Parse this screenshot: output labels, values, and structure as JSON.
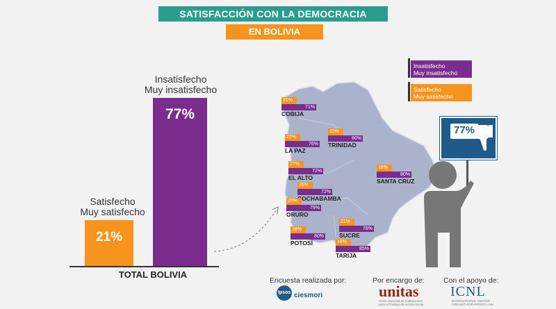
{
  "header": {
    "title": "SATISFACCIÓN CON LA DEMOCRACIA",
    "subtitle": "EN BOLIVIA"
  },
  "colors": {
    "teal": "#2a9d8f",
    "orange": "#f7941d",
    "purple": "#7b2d8e",
    "map": "#aab2cc",
    "figure": "#777777",
    "sign": "#1f5b8a"
  },
  "chart_data": {
    "type": "bar",
    "title": "TOTAL BOLIVIA",
    "categories": [
      "Satisfecho Muy satisfecho",
      "Insatisfecho Muy insatisfecho"
    ],
    "values": [
      21,
      77
    ],
    "ylim": [
      0,
      100
    ],
    "bars": [
      {
        "line1": "Satisfecho",
        "line2": "Muy satisfecho",
        "value": 21,
        "label": "21%",
        "color": "#f7941d"
      },
      {
        "line1": "Insatisfecho",
        "line2": "Muy insatisfecho",
        "value": 77,
        "label": "77%",
        "color": "#7b2d8e"
      }
    ],
    "xlabel": "TOTAL BOLIVIA"
  },
  "legend": [
    {
      "line1": "Insatisfecho",
      "line2": "Muy insatisfecho",
      "color": "#7b2d8e"
    },
    {
      "line1": "Satisfecho",
      "line2": "Muy satisfecho",
      "color": "#f7941d"
    }
  ],
  "regions": [
    {
      "name": "COBIJA",
      "satisfied": "31%",
      "dissatisfied": "71%"
    },
    {
      "name": "LA PAZ",
      "satisfied": "22%",
      "dissatisfied": "76%"
    },
    {
      "name": "TRINIDAD",
      "satisfied": "15%",
      "dissatisfied": "80%"
    },
    {
      "name": "EL ALTO",
      "satisfied": "27%",
      "dissatisfied": "72%"
    },
    {
      "name": "SANTA CRUZ",
      "satisfied": "18%",
      "dissatisfied": "80%"
    },
    {
      "name": "COCHABAMBA",
      "satisfied": "26%",
      "dissatisfied": "72%"
    },
    {
      "name": "ORURO",
      "satisfied": "20%",
      "dissatisfied": "79%"
    },
    {
      "name": "POTOSÍ",
      "satisfied": "18%",
      "dissatisfied": "80%"
    },
    {
      "name": "SUCRE",
      "satisfied": "21%",
      "dissatisfied": "78%"
    },
    {
      "name": "TARIJA",
      "satisfied": "16%",
      "dissatisfied": "85%"
    }
  ],
  "sign": {
    "value": "77%",
    "icon": "thumbs-down-icon"
  },
  "footer": {
    "survey_label": "Encuesta realizada por:",
    "survey_logo1": "Ipsos",
    "survey_logo2": "ciesmori",
    "commission_label": "Por encargo de:",
    "commission_logo": "unitas",
    "commission_sub1": "Unión Nacional de Instituciones",
    "commission_sub2": "para el Trabajo de Acción Social",
    "support_label": "Con el apoyo de:",
    "support_logo": "ICNL",
    "support_sub1": "INTERNATIONAL CENTER",
    "support_sub2": "FOR NOT-FOR-PROFIT LAW"
  }
}
